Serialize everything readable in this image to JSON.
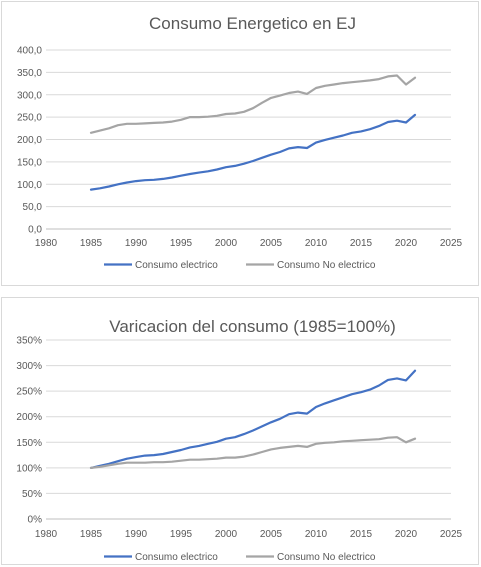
{
  "chart_data": [
    {
      "type": "line",
      "title": "Consumo Energetico en EJ",
      "xlim": [
        1980,
        2025
      ],
      "ylim": [
        0,
        400
      ],
      "x_ticks": [
        "1980",
        "1985",
        "1990",
        "1995",
        "2000",
        "2005",
        "2010",
        "2015",
        "2020",
        "2025"
      ],
      "y_ticks": [
        "0,0",
        "50,0",
        "100,0",
        "150,0",
        "200,0",
        "250,0",
        "300,0",
        "350,0",
        "400,0"
      ],
      "grid": "horizontal",
      "legend_position": "bottom",
      "x": [
        1985,
        1986,
        1987,
        1988,
        1989,
        1990,
        1991,
        1992,
        1993,
        1994,
        1995,
        1996,
        1997,
        1998,
        1999,
        2000,
        2001,
        2002,
        2003,
        2004,
        2005,
        2006,
        2007,
        2008,
        2009,
        2010,
        2011,
        2012,
        2013,
        2014,
        2015,
        2016,
        2017,
        2018,
        2019,
        2020,
        2021
      ],
      "series": [
        {
          "name": "Consumo electrico",
          "color": "#4472c4",
          "values": [
            88,
            91,
            95,
            100,
            104,
            107,
            109,
            110,
            112,
            115,
            119,
            123,
            126,
            129,
            133,
            138,
            141,
            146,
            152,
            159,
            166,
            172,
            180,
            183,
            181,
            193,
            199,
            204,
            209,
            215,
            218,
            223,
            230,
            239,
            242,
            238,
            255
          ]
        },
        {
          "name": "Consumo No electrico",
          "color": "#a5a5a5",
          "values": [
            215,
            220,
            225,
            232,
            235,
            235,
            236,
            237,
            238,
            240,
            244,
            250,
            250,
            251,
            253,
            257,
            258,
            262,
            270,
            282,
            293,
            298,
            304,
            307,
            302,
            315,
            320,
            323,
            326,
            328,
            330,
            332,
            335,
            341,
            343,
            323,
            338
          ]
        }
      ]
    },
    {
      "type": "line",
      "title": "Varicacion del consumo (1985=100%)",
      "xlim": [
        1980,
        2025
      ],
      "ylim": [
        0,
        350
      ],
      "x_ticks": [
        "1980",
        "1985",
        "1990",
        "1995",
        "2000",
        "2005",
        "2010",
        "2015",
        "2020",
        "2025"
      ],
      "y_ticks": [
        "0%",
        "50%",
        "100%",
        "150%",
        "200%",
        "250%",
        "300%",
        "350%"
      ],
      "grid": "horizontal",
      "legend_position": "bottom",
      "x": [
        1985,
        1986,
        1987,
        1988,
        1989,
        1990,
        1991,
        1992,
        1993,
        1994,
        1995,
        1996,
        1997,
        1998,
        1999,
        2000,
        2001,
        2002,
        2003,
        2004,
        2005,
        2006,
        2007,
        2008,
        2009,
        2010,
        2011,
        2012,
        2013,
        2014,
        2015,
        2016,
        2017,
        2018,
        2019,
        2020,
        2021
      ],
      "series": [
        {
          "name": "Consumo electrico",
          "color": "#4472c4",
          "values": [
            100,
            104,
            108,
            113,
            118,
            121,
            124,
            125,
            127,
            131,
            135,
            140,
            143,
            147,
            151,
            157,
            160,
            166,
            173,
            181,
            189,
            196,
            205,
            208,
            206,
            219,
            226,
            232,
            238,
            244,
            248,
            253,
            261,
            272,
            275,
            271,
            290
          ]
        },
        {
          "name": "Consumo No electrico",
          "color": "#a5a5a5",
          "values": [
            100,
            102,
            105,
            108,
            110,
            110,
            110,
            111,
            111,
            112,
            114,
            116,
            116,
            117,
            118,
            120,
            120,
            122,
            126,
            131,
            136,
            139,
            141,
            143,
            141,
            147,
            149,
            150,
            152,
            153,
            154,
            155,
            156,
            159,
            160,
            150,
            157
          ]
        }
      ]
    }
  ]
}
